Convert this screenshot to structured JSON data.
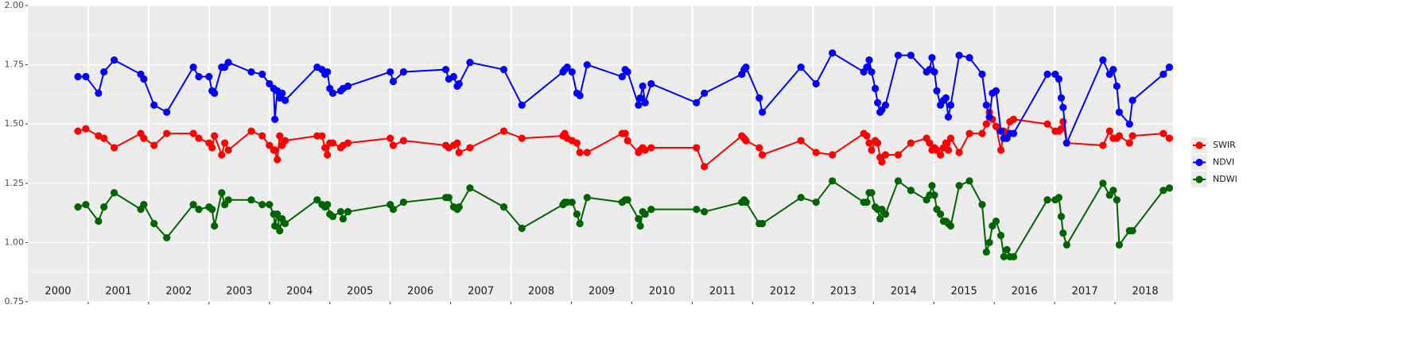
{
  "chart_data": {
    "type": "line",
    "x": [
      2000.83,
      2000.96,
      2001.17,
      2001.26,
      2001.43,
      2001.87,
      2001.92,
      2002.09,
      2002.3,
      2002.74,
      2002.83,
      2003.0,
      2003.05,
      2003.09,
      2003.21,
      2003.26,
      2003.32,
      2003.7,
      2003.88,
      2004.0,
      2004.07,
      2004.09,
      2004.13,
      2004.17,
      2004.21,
      2004.26,
      2004.79,
      2004.87,
      2004.92,
      2004.96,
      2005.0,
      2005.05,
      2005.18,
      2005.22,
      2005.3,
      2006.0,
      2006.05,
      2006.22,
      2006.92,
      2006.97,
      2007.05,
      2007.11,
      2007.14,
      2007.32,
      2007.88,
      2008.18,
      2008.86,
      2008.89,
      2008.93,
      2009.01,
      2009.09,
      2009.14,
      2009.26,
      2009.84,
      2009.89,
      2009.93,
      2010.11,
      2010.14,
      2010.18,
      2010.22,
      2010.32,
      2011.07,
      2011.2,
      2011.82,
      2011.86,
      2011.89,
      2012.11,
      2012.16,
      2012.8,
      2013.05,
      2013.32,
      2013.84,
      2013.89,
      2013.93,
      2013.97,
      2014.03,
      2014.07,
      2014.11,
      2014.14,
      2014.2,
      2014.41,
      2014.62,
      2014.88,
      2014.93,
      2014.97,
      2015.01,
      2015.05,
      2015.11,
      2015.16,
      2015.2,
      2015.24,
      2015.28,
      2015.42,
      2015.59,
      2015.8,
      2015.87,
      2015.92,
      2015.97,
      2016.03,
      2016.11,
      2016.16,
      2016.21,
      2016.26,
      2016.32,
      2016.88,
      2017.01,
      2017.07,
      2017.11,
      2017.14,
      2017.2,
      2017.8,
      2017.91,
      2017.97,
      2018.03,
      2018.07,
      2018.24,
      2018.29,
      2018.8,
      2018.9
    ],
    "series": [
      {
        "name": "SWIR",
        "color": "#ff0000",
        "values": [
          1.47,
          1.48,
          1.45,
          1.44,
          1.4,
          1.46,
          1.44,
          1.41,
          1.46,
          1.46,
          1.44,
          1.42,
          1.4,
          1.45,
          1.37,
          1.42,
          1.39,
          1.47,
          1.45,
          1.41,
          1.39,
          1.39,
          1.35,
          1.45,
          1.41,
          1.43,
          1.45,
          1.45,
          1.4,
          1.37,
          1.42,
          1.42,
          1.4,
          1.41,
          1.42,
          1.44,
          1.41,
          1.43,
          1.41,
          1.4,
          1.41,
          1.42,
          1.38,
          1.4,
          1.47,
          1.44,
          1.45,
          1.46,
          1.44,
          1.43,
          1.42,
          1.38,
          1.38,
          1.46,
          1.46,
          1.43,
          1.38,
          1.39,
          1.4,
          1.39,
          1.4,
          1.4,
          1.32,
          1.45,
          1.44,
          1.43,
          1.4,
          1.37,
          1.43,
          1.38,
          1.37,
          1.46,
          1.45,
          1.42,
          1.39,
          1.43,
          1.42,
          1.36,
          1.34,
          1.37,
          1.37,
          1.42,
          1.44,
          1.42,
          1.39,
          1.4,
          1.39,
          1.37,
          1.4,
          1.42,
          1.39,
          1.44,
          1.38,
          1.46,
          1.46,
          1.5,
          1.55,
          1.52,
          1.49,
          1.39,
          1.47,
          1.46,
          1.51,
          1.52,
          1.5,
          1.47,
          1.47,
          1.48,
          1.51,
          1.42,
          1.41,
          1.47,
          1.44,
          1.44,
          1.45,
          1.42,
          1.45,
          1.46,
          1.44
        ]
      },
      {
        "name": "NDVI",
        "color": "#0000ff",
        "values": [
          1.7,
          1.7,
          1.63,
          1.72,
          1.77,
          1.71,
          1.69,
          1.58,
          1.55,
          1.74,
          1.7,
          1.7,
          1.64,
          1.63,
          1.74,
          1.74,
          1.76,
          1.72,
          1.71,
          1.67,
          1.65,
          1.52,
          1.64,
          1.61,
          1.63,
          1.6,
          1.74,
          1.73,
          1.71,
          1.72,
          1.65,
          1.63,
          1.64,
          1.65,
          1.66,
          1.72,
          1.68,
          1.72,
          1.73,
          1.69,
          1.7,
          1.66,
          1.67,
          1.76,
          1.73,
          1.58,
          1.72,
          1.73,
          1.74,
          1.72,
          1.63,
          1.62,
          1.75,
          1.7,
          1.73,
          1.72,
          1.58,
          1.61,
          1.66,
          1.59,
          1.67,
          1.59,
          1.63,
          1.71,
          1.73,
          1.74,
          1.61,
          1.55,
          1.74,
          1.67,
          1.8,
          1.72,
          1.74,
          1.77,
          1.72,
          1.65,
          1.59,
          1.55,
          1.56,
          1.58,
          1.79,
          1.79,
          1.72,
          1.73,
          1.78,
          1.72,
          1.64,
          1.58,
          1.6,
          1.61,
          1.53,
          1.58,
          1.79,
          1.78,
          1.71,
          1.58,
          1.53,
          1.63,
          1.64,
          1.47,
          1.44,
          1.44,
          1.46,
          1.46,
          1.71,
          1.71,
          1.69,
          1.61,
          1.57,
          1.42,
          1.77,
          1.71,
          1.73,
          1.66,
          1.55,
          1.5,
          1.6,
          1.71,
          1.74
        ]
      },
      {
        "name": "NDWI",
        "color": "#006400",
        "values": [
          1.15,
          1.16,
          1.09,
          1.15,
          1.21,
          1.14,
          1.16,
          1.08,
          1.02,
          1.16,
          1.14,
          1.15,
          1.14,
          1.07,
          1.21,
          1.16,
          1.18,
          1.18,
          1.16,
          1.16,
          1.12,
          1.07,
          1.12,
          1.05,
          1.1,
          1.08,
          1.18,
          1.16,
          1.15,
          1.16,
          1.12,
          1.11,
          1.13,
          1.1,
          1.13,
          1.16,
          1.14,
          1.17,
          1.19,
          1.19,
          1.15,
          1.14,
          1.15,
          1.23,
          1.15,
          1.06,
          1.16,
          1.17,
          1.17,
          1.17,
          1.12,
          1.08,
          1.19,
          1.17,
          1.18,
          1.18,
          1.1,
          1.07,
          1.13,
          1.12,
          1.14,
          1.14,
          1.13,
          1.17,
          1.18,
          1.17,
          1.08,
          1.08,
          1.19,
          1.17,
          1.26,
          1.17,
          1.17,
          1.21,
          1.21,
          1.15,
          1.14,
          1.1,
          1.14,
          1.12,
          1.26,
          1.22,
          1.18,
          1.2,
          1.24,
          1.2,
          1.14,
          1.12,
          1.09,
          1.09,
          1.08,
          1.07,
          1.24,
          1.26,
          1.16,
          0.96,
          1.0,
          1.07,
          1.09,
          1.03,
          0.94,
          0.97,
          0.94,
          0.94,
          1.18,
          1.18,
          1.19,
          1.11,
          1.04,
          0.99,
          1.25,
          1.2,
          1.22,
          1.18,
          0.99,
          1.05,
          1.05,
          1.22,
          1.23
        ]
      }
    ],
    "xlim": [
      2000,
      2018.96
    ],
    "xticks": [
      2001,
      2002,
      2003,
      2004,
      2005,
      2006,
      2007,
      2008,
      2009,
      2010,
      2011,
      2012,
      2013,
      2014,
      2015,
      2016,
      2017,
      2018
    ],
    "year_labels": [
      {
        "value": 2000.5,
        "label": "2000"
      },
      {
        "value": 2001.5,
        "label": "2001"
      },
      {
        "value": 2002.5,
        "label": "2002"
      },
      {
        "value": 2003.5,
        "label": "2003"
      },
      {
        "value": 2004.5,
        "label": "2004"
      },
      {
        "value": 2005.5,
        "label": "2005"
      },
      {
        "value": 2006.5,
        "label": "2006"
      },
      {
        "value": 2007.5,
        "label": "2007"
      },
      {
        "value": 2008.5,
        "label": "2008"
      },
      {
        "value": 2009.5,
        "label": "2009"
      },
      {
        "value": 2010.5,
        "label": "2010"
      },
      {
        "value": 2011.5,
        "label": "2011"
      },
      {
        "value": 2012.5,
        "label": "2012"
      },
      {
        "value": 2013.5,
        "label": "2013"
      },
      {
        "value": 2014.5,
        "label": "2014"
      },
      {
        "value": 2015.5,
        "label": "2015"
      },
      {
        "value": 2016.5,
        "label": "2016"
      },
      {
        "value": 2017.5,
        "label": "2017"
      },
      {
        "value": 2018.5,
        "label": "2018"
      }
    ],
    "ylim": [
      0.75,
      2.0
    ],
    "yticks": [
      {
        "value": 0.75,
        "label": "0.75"
      },
      {
        "value": 1.0,
        "label": "1.00"
      },
      {
        "value": 1.25,
        "label": "1.25"
      },
      {
        "value": 1.5,
        "label": "1.50"
      },
      {
        "value": 1.75,
        "label": "1.75"
      },
      {
        "value": 2.0,
        "label": "2.00"
      }
    ],
    "grid": true,
    "legend": "right"
  }
}
